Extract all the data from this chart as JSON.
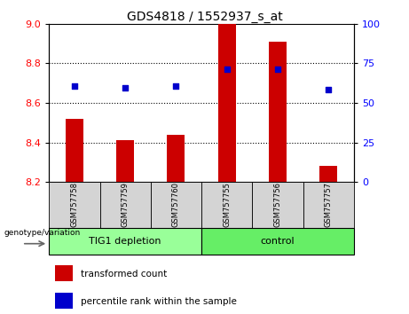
{
  "title": "GDS4818 / 1552937_s_at",
  "samples": [
    "GSM757758",
    "GSM757759",
    "GSM757760",
    "GSM757755",
    "GSM757756",
    "GSM757757"
  ],
  "bar_values": [
    8.52,
    8.41,
    8.44,
    9.0,
    8.91,
    8.28
  ],
  "scatter_values": [
    8.685,
    8.675,
    8.685,
    8.77,
    8.77,
    8.665
  ],
  "ylim_left": [
    8.2,
    9.0
  ],
  "ylim_right": [
    0,
    100
  ],
  "yticks_left": [
    8.2,
    8.4,
    8.6,
    8.8,
    9.0
  ],
  "yticks_right": [
    0,
    25,
    50,
    75,
    100
  ],
  "bar_color": "#cc0000",
  "scatter_color": "#0000cc",
  "group1_label": "TIG1 depletion",
  "group2_label": "control",
  "group1_color": "#99ff99",
  "group2_color": "#66ee66",
  "legend_bar_label": "transformed count",
  "legend_scatter_label": "percentile rank within the sample",
  "genotype_label": "genotype/variation",
  "bar_base": 8.2,
  "title_fontsize": 10,
  "tick_fontsize": 8,
  "label_fontsize": 7.5,
  "legend_fontsize": 7.5,
  "group_fontsize": 8
}
